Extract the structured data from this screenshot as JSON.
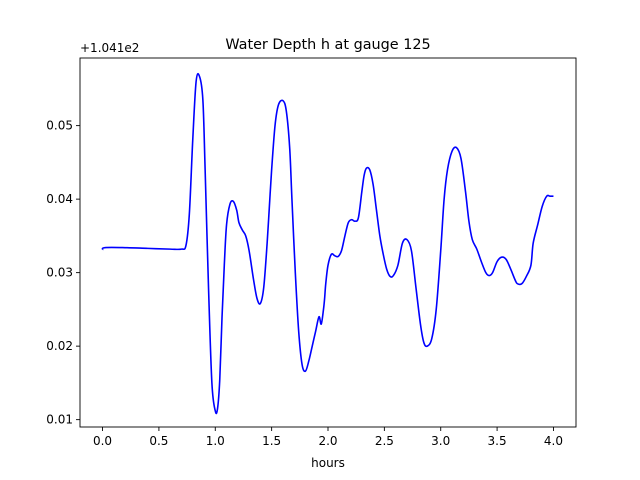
{
  "chart_data": {
    "type": "line",
    "title": "Water Depth h at gauge 125",
    "xlabel": "hours",
    "ylabel": "",
    "offset_label": "+1.041e2",
    "xlim": [
      -0.2,
      4.2
    ],
    "ylim": [
      0.009,
      0.0592
    ],
    "xticks": [
      0.0,
      0.5,
      1.0,
      1.5,
      2.0,
      2.5,
      3.0,
      3.5,
      4.0
    ],
    "xtick_labels": [
      "0.0",
      "0.5",
      "1.0",
      "1.5",
      "2.0",
      "2.5",
      "3.0",
      "3.5",
      "4.0"
    ],
    "yticks": [
      0.01,
      0.02,
      0.03,
      0.04,
      0.05
    ],
    "ytick_labels": [
      "0.01",
      "0.02",
      "0.03",
      "0.04",
      "0.05"
    ],
    "grid": false,
    "legend": "none",
    "series": [
      {
        "color": "#0000ff",
        "x": [
          0.0,
          0.02,
          0.2,
          0.4,
          0.6,
          0.7,
          0.74,
          0.77,
          0.8,
          0.83,
          0.86,
          0.89,
          0.91,
          0.94,
          0.97,
          1.0,
          1.02,
          1.04,
          1.06,
          1.08,
          1.1,
          1.13,
          1.16,
          1.19,
          1.21,
          1.24,
          1.27,
          1.3,
          1.34,
          1.37,
          1.4,
          1.43,
          1.46,
          1.48,
          1.5,
          1.53,
          1.56,
          1.6,
          1.63,
          1.66,
          1.68,
          1.71,
          1.74,
          1.77,
          1.8,
          1.83,
          1.86,
          1.89,
          1.92,
          1.94,
          1.96,
          1.97,
          1.98,
          2.0,
          2.03,
          2.06,
          2.09,
          2.12,
          2.15,
          2.18,
          2.21,
          2.24,
          2.27,
          2.3,
          2.32,
          2.34,
          2.37,
          2.4,
          2.43,
          2.46,
          2.49,
          2.52,
          2.55,
          2.58,
          2.62,
          2.66,
          2.7,
          2.74,
          2.78,
          2.82,
          2.85,
          2.88,
          2.92,
          2.96,
          3.0,
          3.03,
          3.06,
          3.1,
          3.14,
          3.18,
          3.22,
          3.25,
          3.28,
          3.32,
          3.36,
          3.4,
          3.43,
          3.46,
          3.5,
          3.54,
          3.58,
          3.62,
          3.66,
          3.68,
          3.72,
          3.76,
          3.8,
          3.82,
          3.86,
          3.9,
          3.94,
          3.97,
          4.0
        ],
        "y": [
          0.0331,
          0.0334,
          0.0334,
          0.0333,
          0.0332,
          0.0332,
          0.0337,
          0.038,
          0.048,
          0.056,
          0.0567,
          0.0535,
          0.044,
          0.028,
          0.015,
          0.0112,
          0.0115,
          0.0155,
          0.024,
          0.031,
          0.0365,
          0.0393,
          0.0397,
          0.0385,
          0.0368,
          0.0358,
          0.035,
          0.033,
          0.029,
          0.0265,
          0.0258,
          0.028,
          0.034,
          0.039,
          0.044,
          0.05,
          0.0528,
          0.0534,
          0.052,
          0.047,
          0.04,
          0.03,
          0.022,
          0.0175,
          0.0166,
          0.018,
          0.02,
          0.022,
          0.024,
          0.023,
          0.025,
          0.0265,
          0.0285,
          0.031,
          0.0325,
          0.0323,
          0.0322,
          0.033,
          0.035,
          0.0368,
          0.0372,
          0.037,
          0.0375,
          0.041,
          0.0432,
          0.0442,
          0.044,
          0.042,
          0.0385,
          0.035,
          0.0325,
          0.0305,
          0.0295,
          0.0296,
          0.031,
          0.034,
          0.0345,
          0.033,
          0.028,
          0.023,
          0.0205,
          0.02,
          0.021,
          0.025,
          0.033,
          0.04,
          0.044,
          0.0465,
          0.047,
          0.0455,
          0.041,
          0.037,
          0.0345,
          0.0332,
          0.0315,
          0.03,
          0.0296,
          0.03,
          0.0315,
          0.0321,
          0.0318,
          0.0305,
          0.029,
          0.0285,
          0.0285,
          0.0295,
          0.031,
          0.034,
          0.0365,
          0.039,
          0.0404,
          0.0404,
          0.0404
        ]
      }
    ]
  }
}
